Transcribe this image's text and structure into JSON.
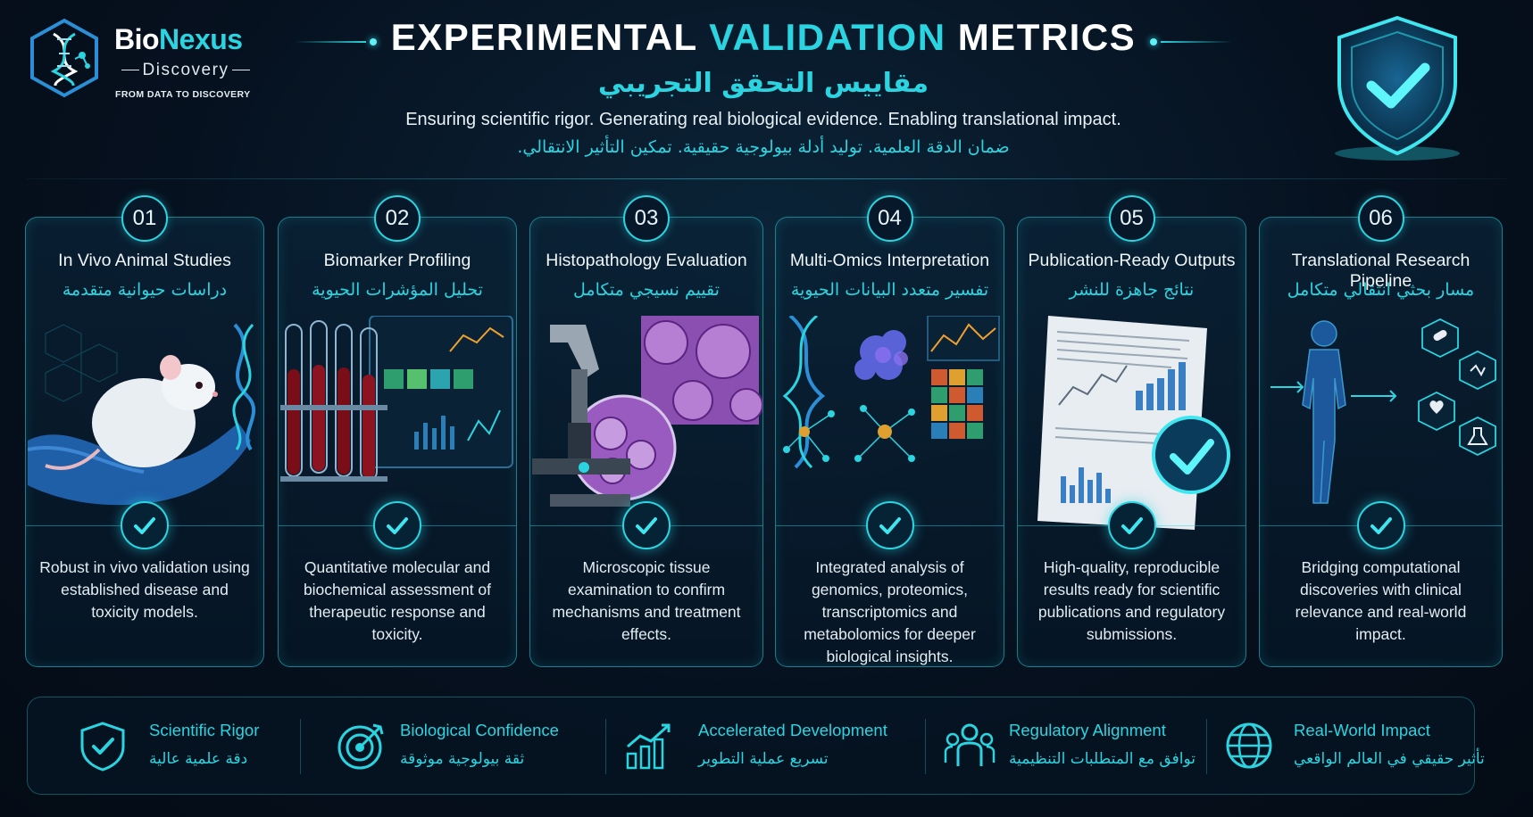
{
  "brand": {
    "name_part1": "Bio",
    "name_part2": "Nexus",
    "sub": "Discovery",
    "tagline": "FROM DATA TO DISCOVERY"
  },
  "header": {
    "title_part1": "EXPERIMENTAL ",
    "title_part2": "VALIDATION",
    "title_part3": " METRICS",
    "title_ar": "مقاييس التحقق التجريبي",
    "subtitle": "Ensuring scientific rigor. Generating real biological evidence. Enabling translational impact.",
    "subtitle_ar": "ضمان الدقة العلمية. توليد أدلة بيولوجية حقيقية. تمكين التأثير الانتقالي."
  },
  "colors": {
    "accent": "#2ad4e0",
    "background": "#06111f",
    "card_border": "#2ad4e0"
  },
  "cards": [
    {
      "num": "01",
      "title": "In Vivo Animal Studies",
      "title_ar": "دراسات حيوانية متقدمة",
      "icon": "lab-rat-illustration",
      "desc": "Robust in vivo validation using established disease and toxicity models."
    },
    {
      "num": "02",
      "title": "Biomarker Profiling",
      "title_ar": "تحليل المؤشرات الحيوية",
      "icon": "test-tubes-illustration",
      "desc": "Quantitative molecular and biochemical assessment of therapeutic response and toxicity."
    },
    {
      "num": "03",
      "title": "Histopathology Evaluation",
      "title_ar": "تقييم نسيجي متكامل",
      "icon": "microscope-illustration",
      "desc": "Microscopic tissue examination to confirm mechanisms and treatment effects."
    },
    {
      "num": "04",
      "title": "Multi-Omics Interpretation",
      "title_ar": "تفسير متعدد البيانات الحيوية",
      "icon": "omics-illustration",
      "desc": "Integrated analysis of genomics, proteomics, transcriptomics and metabolomics for deeper biological insights."
    },
    {
      "num": "05",
      "title": "Publication-Ready Outputs",
      "title_ar": "نتائج جاهزة للنشر",
      "icon": "report-illustration",
      "desc": "High-quality, reproducible results ready for scientific publications and regulatory submissions."
    },
    {
      "num": "06",
      "title": "Translational Research Pipeline",
      "title_ar": "مسار بحثي انتقالي متكامل",
      "icon": "human-body-illustration",
      "desc": "Bridging computational discoveries with clinical relevance and real-world impact."
    }
  ],
  "benefits": [
    {
      "label": "Scientific Rigor",
      "label_ar": "دقة علمية عالية",
      "icon": "shield-check-icon"
    },
    {
      "label": "Biological Confidence",
      "label_ar": "ثقة بيولوجية موثوقة",
      "icon": "target-icon"
    },
    {
      "label": "Accelerated Development",
      "label_ar": "تسريع عملية التطوير",
      "icon": "growth-chart-icon"
    },
    {
      "label": "Regulatory Alignment",
      "label_ar": "توافق مع المتطلبات التنظيمية",
      "icon": "team-icon"
    },
    {
      "label": "Real-World Impact",
      "label_ar": "تأثير حقيقي في العالم الواقعي",
      "icon": "globe-icon"
    }
  ]
}
